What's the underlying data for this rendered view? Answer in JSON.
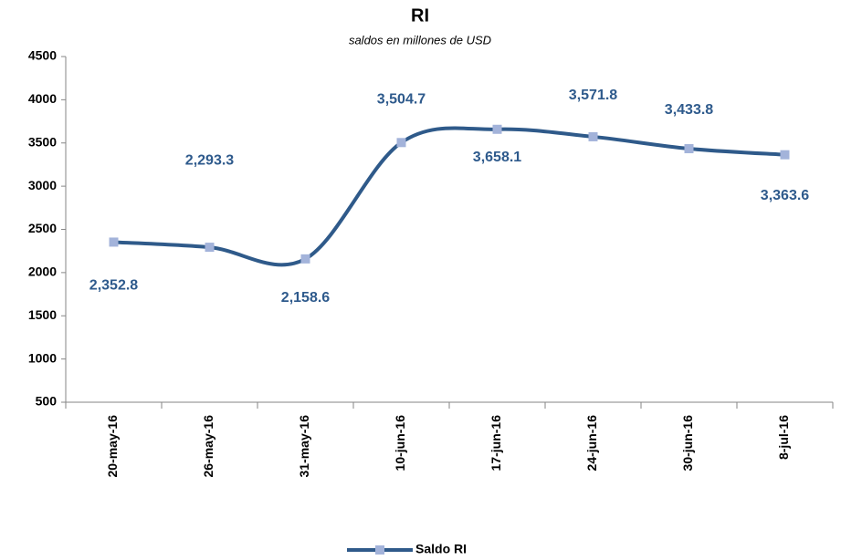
{
  "chart_data": {
    "type": "line",
    "title": "RI",
    "subtitle": "saldos en millones de USD",
    "categories": [
      "20-may-16",
      "26-may-16",
      "31-may-16",
      "10-jun-16",
      "17-jun-16",
      "24-jun-16",
      "30-jun-16",
      "8-jul-16"
    ],
    "series": [
      {
        "name": "Saldo RI",
        "color": "#2f5a8a",
        "marker_color": "#a3b3da",
        "values": [
          2352.8,
          2293.3,
          2158.6,
          3504.7,
          3658.1,
          3571.8,
          3433.8,
          3363.6
        ],
        "value_labels": [
          "2,352.8",
          "2,293.3",
          "2,158.6",
          "3,504.7",
          "3,658.1",
          "3,571.8",
          "3,433.8",
          "3,363.6"
        ]
      }
    ],
    "ylim": [
      500,
      4500
    ],
    "yticks": [
      500,
      1000,
      1500,
      2000,
      2500,
      3000,
      3500,
      4000,
      4500
    ],
    "smooth": true,
    "grid": false,
    "legend": "bottom"
  }
}
